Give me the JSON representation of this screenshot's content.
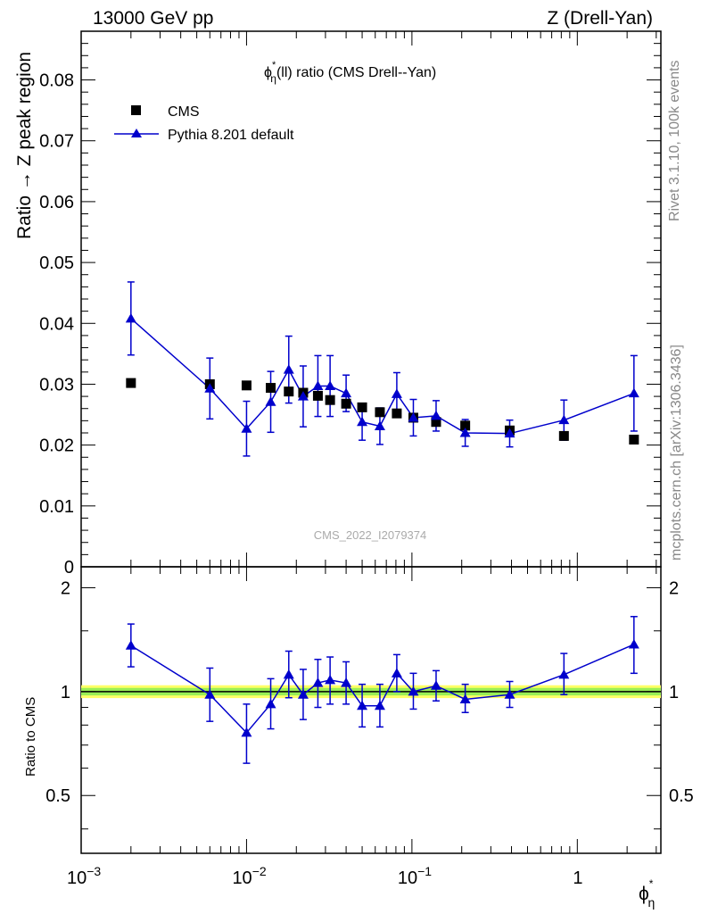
{
  "header": {
    "left": "13000 GeV pp",
    "right": "Z (Drell-Yan)"
  },
  "side_labels": {
    "rivet": "Rivet 3.1.10,  100k events",
    "mcplots": "mcplots.cern.ch [arXiv:1306.3436]"
  },
  "chart_data": [
    {
      "type": "scatter",
      "panel": "main",
      "title_main": "ϕ",
      "title_sup": "*",
      "title_sub": "η",
      "title_rest": "(ll) ratio (CMS Drell--Yan)",
      "ylabel": "Ratio → Z peak region",
      "watermark": "CMS_2022_I2079374",
      "xscale": "log",
      "xlim": [
        0.001,
        3.2
      ],
      "ylim": [
        0,
        0.088
      ],
      "yticks": [
        0,
        0.01,
        0.02,
        0.03,
        0.04,
        0.05,
        0.06,
        0.07,
        0.08
      ],
      "ytick_labels": [
        "0",
        "0.01",
        "0.02",
        "0.03",
        "0.04",
        "0.05",
        "0.06",
        "0.07",
        "0.08"
      ],
      "legend_position": "top-left",
      "series": [
        {
          "name": "CMS",
          "marker": "square",
          "color": "#000000",
          "x": [
            0.002,
            0.006,
            0.01,
            0.014,
            0.018,
            0.022,
            0.027,
            0.032,
            0.04,
            0.05,
            0.064,
            0.081,
            0.102,
            0.14,
            0.21,
            0.39,
            0.83,
            2.2
          ],
          "y": [
            0.0302,
            0.03,
            0.0298,
            0.0294,
            0.0288,
            0.0286,
            0.0281,
            0.0274,
            0.0268,
            0.0262,
            0.0254,
            0.0252,
            0.0245,
            0.0238,
            0.0232,
            0.0224,
            0.0215,
            0.0209
          ]
        },
        {
          "name": "Pythia 8.201 default",
          "marker": "triangle",
          "color": "#0000cc",
          "line": true,
          "x": [
            0.002,
            0.006,
            0.01,
            0.014,
            0.018,
            0.022,
            0.027,
            0.032,
            0.04,
            0.05,
            0.064,
            0.081,
            0.102,
            0.14,
            0.21,
            0.39,
            0.83,
            2.2
          ],
          "y": [
            0.0408,
            0.0293,
            0.0227,
            0.0271,
            0.0324,
            0.028,
            0.0297,
            0.0297,
            0.0285,
            0.0238,
            0.0231,
            0.0284,
            0.0245,
            0.0248,
            0.022,
            0.0219,
            0.0241,
            0.0285
          ],
          "err": [
            0.006,
            0.005,
            0.0045,
            0.005,
            0.0055,
            0.005,
            0.005,
            0.005,
            0.003,
            0.003,
            0.003,
            0.0035,
            0.003,
            0.0025,
            0.0022,
            0.0022,
            0.0033,
            0.0062
          ]
        }
      ]
    },
    {
      "type": "scatter",
      "panel": "ratio",
      "ylabel": "Ratio to CMS",
      "xlabel_main": "ϕ",
      "xlabel_sup": "*",
      "xlabel_sub": "η",
      "xscale": "log",
      "xlim": [
        0.001,
        3.2
      ],
      "ylim": [
        0.34,
        2.3
      ],
      "yticks": [
        0.5,
        1,
        2
      ],
      "ytick_labels": [
        "0.5",
        "1",
        "2"
      ],
      "xtick_labels": [
        {
          "base": "10",
          "exp": "−3",
          "value": 0.001
        },
        {
          "base": "10",
          "exp": "−2",
          "value": 0.01
        },
        {
          "base": "10",
          "exp": "−1",
          "value": 0.1
        },
        {
          "base": "1",
          "exp": "",
          "value": 1
        }
      ],
      "band": {
        "low": 0.975,
        "high": 1.025,
        "outer_color": "#ffff66",
        "inner_color": "#99ee55"
      },
      "series": [
        {
          "name": "Pythia 8.201 default",
          "color": "#0000cc",
          "x": [
            0.002,
            0.006,
            0.01,
            0.014,
            0.018,
            0.022,
            0.027,
            0.032,
            0.04,
            0.05,
            0.064,
            0.081,
            0.102,
            0.14,
            0.21,
            0.39,
            0.83,
            2.2
          ],
          "y": [
            1.36,
            0.98,
            0.76,
            0.92,
            1.12,
            0.98,
            1.06,
            1.08,
            1.06,
            0.91,
            0.91,
            1.13,
            1.0,
            1.04,
            0.95,
            0.98,
            1.12,
            1.37
          ],
          "err_low": [
            0.18,
            0.16,
            0.14,
            0.14,
            0.16,
            0.15,
            0.16,
            0.16,
            0.14,
            0.12,
            0.12,
            0.13,
            0.11,
            0.1,
            0.08,
            0.08,
            0.14,
            0.24
          ],
          "err_high": [
            0.21,
            0.19,
            0.16,
            0.17,
            0.19,
            0.18,
            0.18,
            0.18,
            0.16,
            0.14,
            0.14,
            0.15,
            0.13,
            0.11,
            0.1,
            0.09,
            0.17,
            0.28
          ]
        }
      ]
    }
  ]
}
